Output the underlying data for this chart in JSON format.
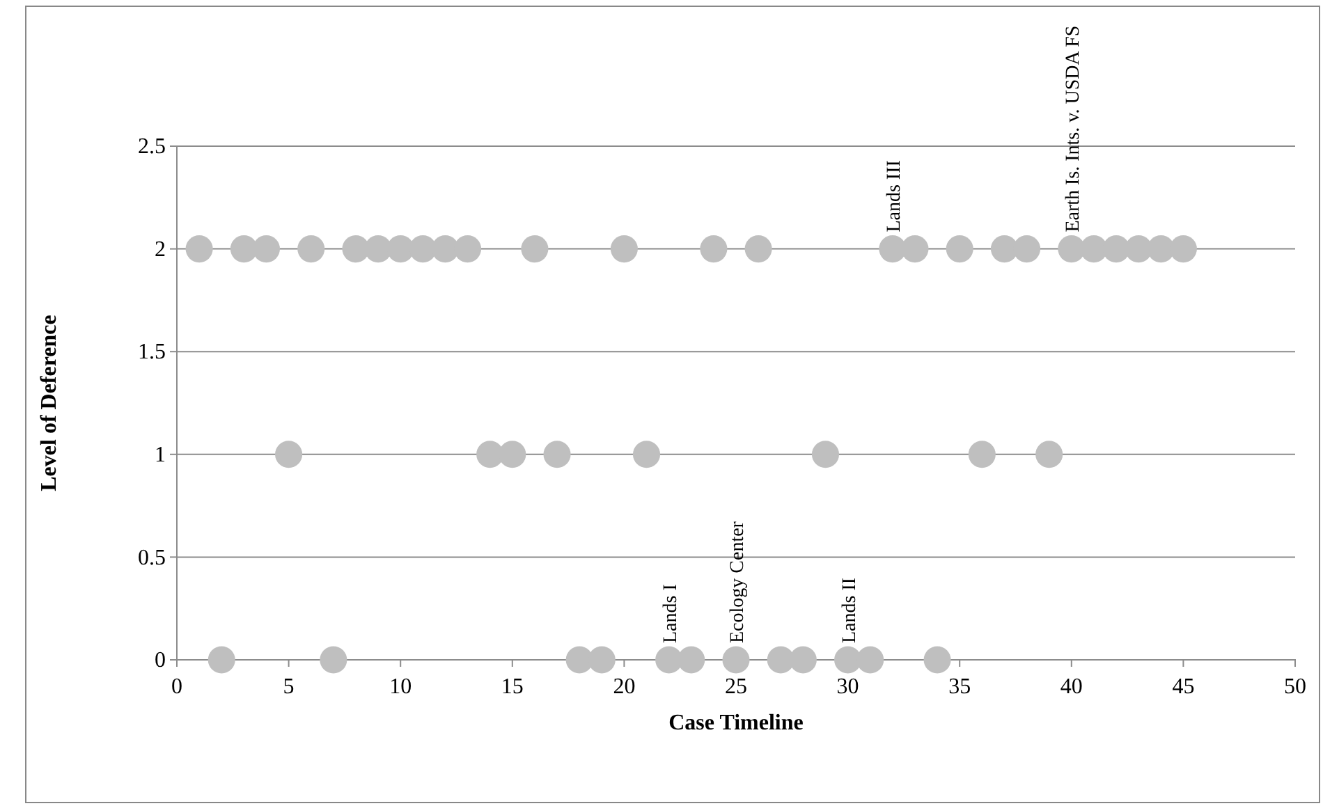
{
  "chart_data": {
    "type": "scatter",
    "xlabel": "Case Timeline",
    "ylabel": "Level of Deference",
    "x": [
      1,
      2,
      3,
      4,
      5,
      6,
      7,
      8,
      9,
      10,
      11,
      12,
      13,
      14,
      15,
      16,
      17,
      18,
      19,
      20,
      21,
      22,
      23,
      24,
      25,
      26,
      27,
      28,
      29,
      30,
      31,
      32,
      33,
      34,
      35,
      36,
      37,
      38,
      39,
      40,
      41,
      42,
      43,
      44,
      45
    ],
    "series": [
      {
        "color": "#bfbfbf",
        "values": [
          2,
          0,
          2,
          2,
          1,
          2,
          0,
          2,
          2,
          2,
          2,
          2,
          2,
          1,
          1,
          2,
          1,
          0,
          0,
          2,
          1,
          0,
          0,
          2,
          0,
          2,
          0,
          0,
          1,
          0,
          0,
          2,
          2,
          0,
          2,
          1,
          2,
          2,
          1,
          2,
          2,
          2,
          2,
          2,
          2
        ]
      }
    ],
    "xlim": [
      0,
      50
    ],
    "xticks": [
      0,
      5,
      10,
      15,
      20,
      25,
      30,
      35,
      40,
      45,
      50
    ],
    "ylim": [
      0,
      2.5
    ],
    "yticks": [
      0,
      0.5,
      1,
      1.5,
      2,
      2.5
    ],
    "grid": "y",
    "marker": "circle",
    "annotations": [
      {
        "text": "Lands I",
        "x": 22,
        "y": 0
      },
      {
        "text": "Ecology Center",
        "x": 25,
        "y": 0
      },
      {
        "text": "Lands II",
        "x": 30,
        "y": 0
      },
      {
        "text": "Lands III",
        "x": 32,
        "y": 2
      },
      {
        "text": "Earth Is. Ints. v. USDA FS",
        "x": 40,
        "y": 2
      }
    ]
  }
}
